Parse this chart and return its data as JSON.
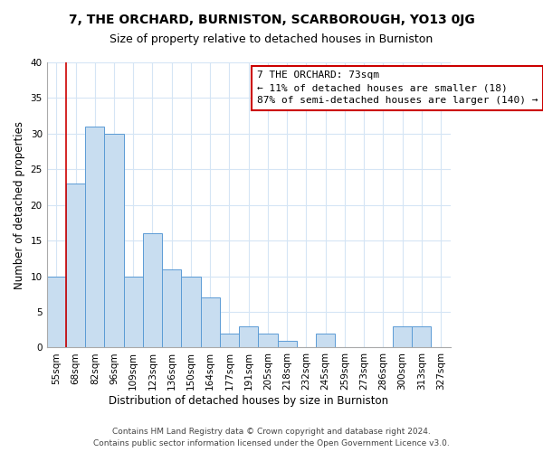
{
  "title": "7, THE ORCHARD, BURNISTON, SCARBOROUGH, YO13 0JG",
  "subtitle": "Size of property relative to detached houses in Burniston",
  "xlabel": "Distribution of detached houses by size in Burniston",
  "ylabel": "Number of detached properties",
  "bar_labels": [
    "55sqm",
    "68sqm",
    "82sqm",
    "96sqm",
    "109sqm",
    "123sqm",
    "136sqm",
    "150sqm",
    "164sqm",
    "177sqm",
    "191sqm",
    "205sqm",
    "218sqm",
    "232sqm",
    "245sqm",
    "259sqm",
    "273sqm",
    "286sqm",
    "300sqm",
    "313sqm",
    "327sqm"
  ],
  "bar_values": [
    10,
    23,
    31,
    30,
    10,
    16,
    11,
    10,
    7,
    2,
    3,
    2,
    1,
    0,
    2,
    0,
    0,
    0,
    3,
    3,
    0
  ],
  "bar_color": "#c8ddf0",
  "bar_edge_color": "#5b9bd5",
  "annotation_box_text": "7 THE ORCHARD: 73sqm\n← 11% of detached houses are smaller (18)\n87% of semi-detached houses are larger (140) →",
  "annotation_box_color": "#ffffff",
  "annotation_box_edge_color": "#cc0000",
  "vline_color": "#cc0000",
  "ylim": [
    0,
    40
  ],
  "yticks": [
    0,
    5,
    10,
    15,
    20,
    25,
    30,
    35,
    40
  ],
  "footer_line1": "Contains HM Land Registry data © Crown copyright and database right 2024.",
  "footer_line2": "Contains public sector information licensed under the Open Government Licence v3.0.",
  "bg_color": "#ffffff",
  "grid_color": "#d5e5f5",
  "title_fontsize": 10,
  "subtitle_fontsize": 9,
  "axis_label_fontsize": 8.5,
  "tick_fontsize": 7.5,
  "annotation_fontsize": 8,
  "footer_fontsize": 6.5
}
